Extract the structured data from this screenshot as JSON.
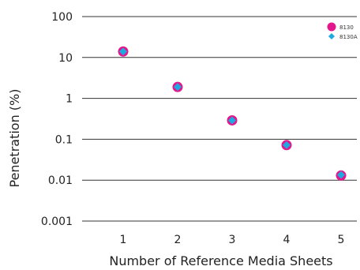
{
  "chart_data": {
    "type": "scatter",
    "xlabel": "Number of Reference Media Sheets",
    "ylabel": "Penetration (%)",
    "x_ticks": [
      "1",
      "2",
      "3",
      "4",
      "5"
    ],
    "y_ticks": [
      "100",
      "10",
      "1",
      "0.1",
      "0.01",
      "0.001"
    ],
    "y_scale": "log",
    "ylim": [
      0.001,
      100
    ],
    "xlim": [
      0,
      5.6
    ],
    "grid": "horizontal",
    "legend_position": "top-right",
    "series": [
      {
        "name": "8130",
        "marker": "circle",
        "color": "#e5168c",
        "x": [
          1,
          2,
          3,
          4,
          5
        ],
        "y": [
          14,
          1.9,
          0.29,
          0.072,
          0.013
        ]
      },
      {
        "name": "8130A",
        "marker": "diamond",
        "color": "#1fa9e1",
        "x": [
          1,
          2,
          3,
          4,
          5
        ],
        "y": [
          14,
          1.9,
          0.29,
          0.072,
          0.0135
        ]
      }
    ]
  }
}
